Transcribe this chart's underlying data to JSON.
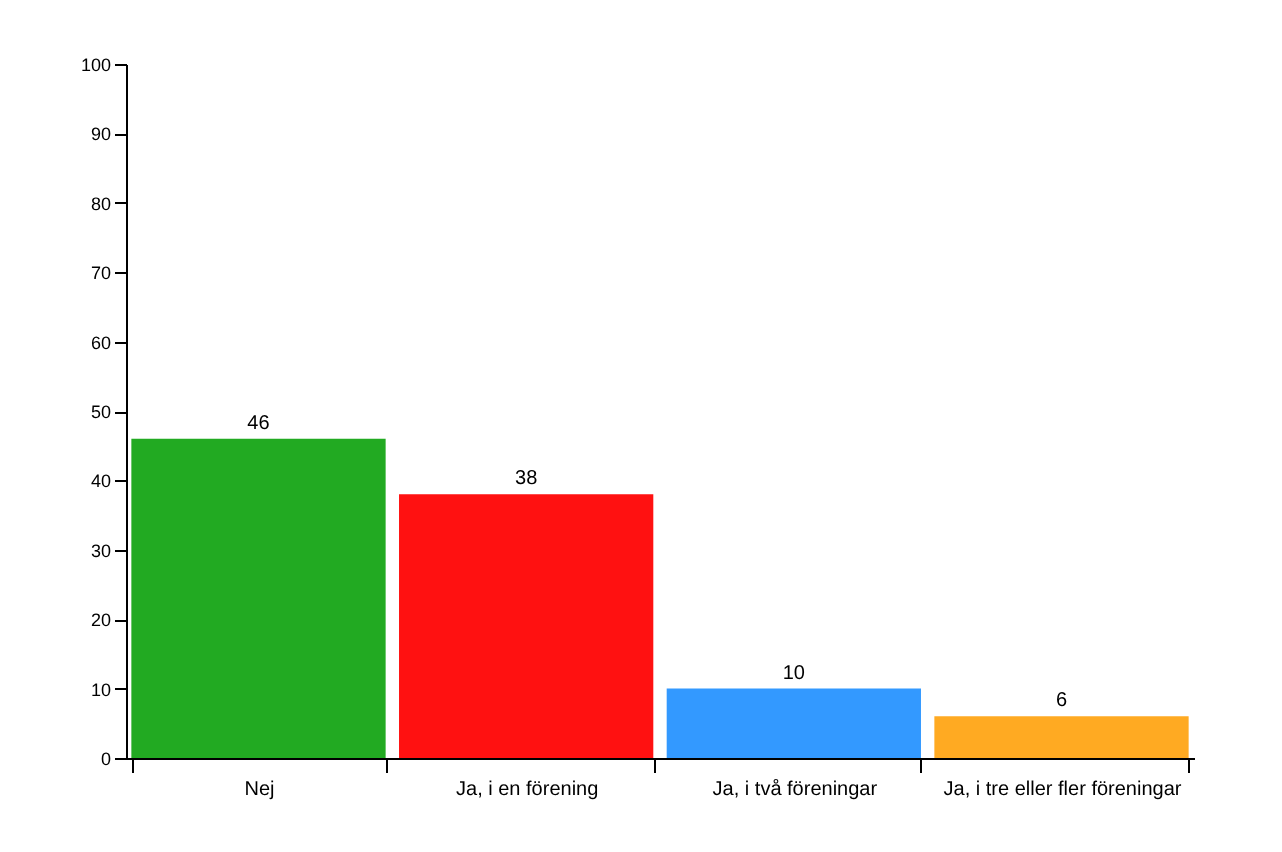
{
  "chart_data": {
    "type": "bar",
    "categories": [
      "Nej",
      "Ja, i en förening",
      "Ja, i två föreningar",
      "Ja, i tre eller fler föreningar"
    ],
    "values": [
      46,
      38,
      10,
      6
    ],
    "colors": [
      "#22aa22",
      "#ff1111",
      "#3399ff",
      "#ffaa22"
    ],
    "ylim": [
      0,
      100
    ],
    "yticks": [
      0,
      10,
      20,
      30,
      40,
      50,
      60,
      70,
      80,
      90,
      100
    ],
    "grid": false,
    "data_labels": true,
    "legend": false
  }
}
